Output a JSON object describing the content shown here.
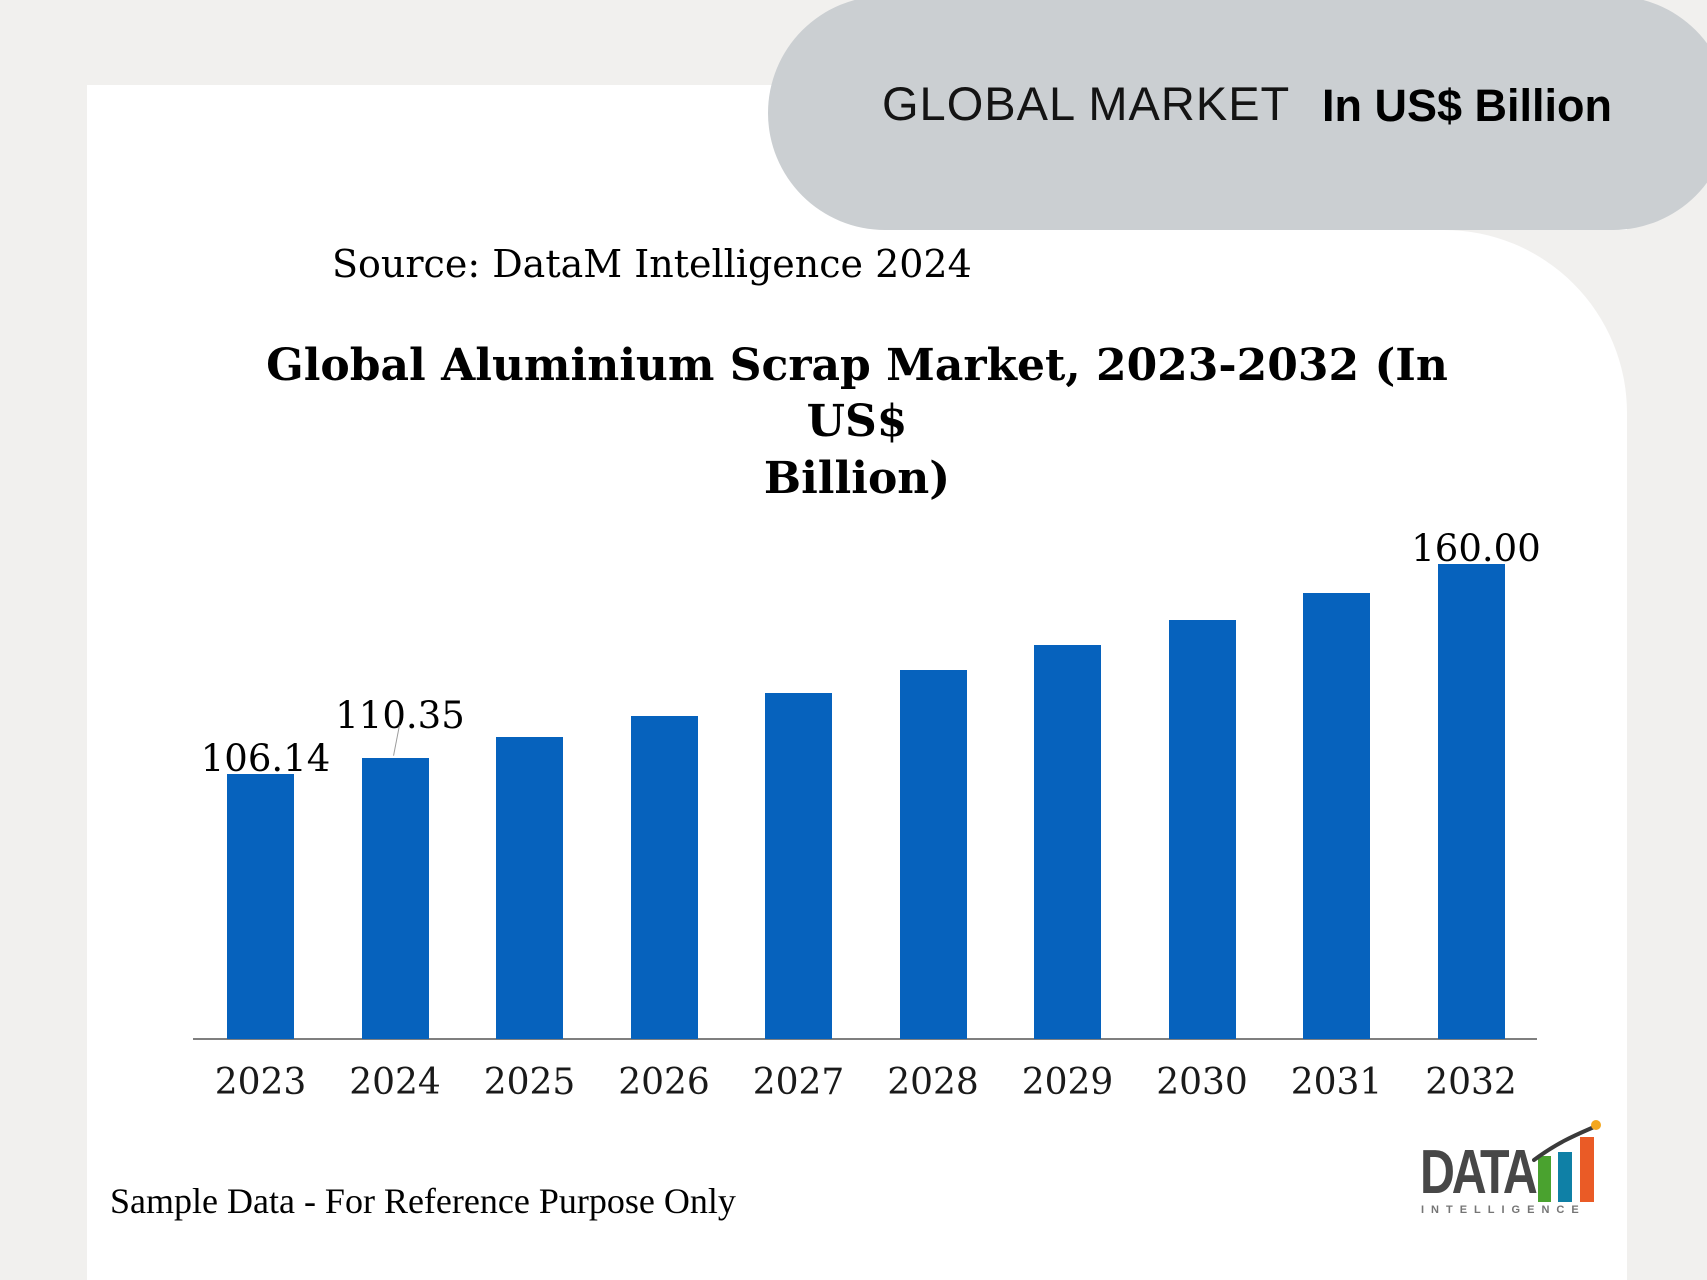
{
  "page": {
    "background": "#f1f0ee",
    "card_background": "#ffffff"
  },
  "header_pill": {
    "title": "GLOBAL MARKET",
    "unit_label": "In US$ Billion",
    "background": "#cbcfd2"
  },
  "source_note": "Source: DataM Intelligence 2024",
  "chart_title": {
    "line1": "Global Aluminium Scrap Market, 2023-2032 (In US$",
    "line2": "Billion)"
  },
  "footer": {
    "disclaimer": "Sample Data - For Reference Purpose Only"
  },
  "logo": {
    "word": "DATA",
    "subword": "INTELLIGENCE",
    "word_color": "#474747",
    "subword_color": "#757575",
    "bar_colors": [
      "#4aa22f",
      "#0f80a6",
      "#ea5b26"
    ],
    "swoosh_color": "#3a3a3a",
    "dot_color": "#f4a71d"
  },
  "chart_data": {
    "type": "bar",
    "title": "Global Aluminium Scrap Market, 2023-2032 (In US$ Billion)",
    "unit": "US$ Billion",
    "categories": [
      "2023",
      "2024",
      "2025",
      "2026",
      "2027",
      "2028",
      "2029",
      "2030",
      "2031",
      "2032"
    ],
    "values": [
      106.14,
      110.35,
      115.59,
      121.08,
      126.83,
      132.85,
      139.16,
      145.77,
      152.69,
      160.0
    ],
    "data_labels": {
      "2023": "106.14",
      "2024": "110.35",
      "2032": "160.00"
    },
    "bar_color": "#0662bd",
    "axis_color": "#7f7f7f",
    "ylim": [
      40,
      170
    ],
    "grid": false,
    "legend": false
  }
}
